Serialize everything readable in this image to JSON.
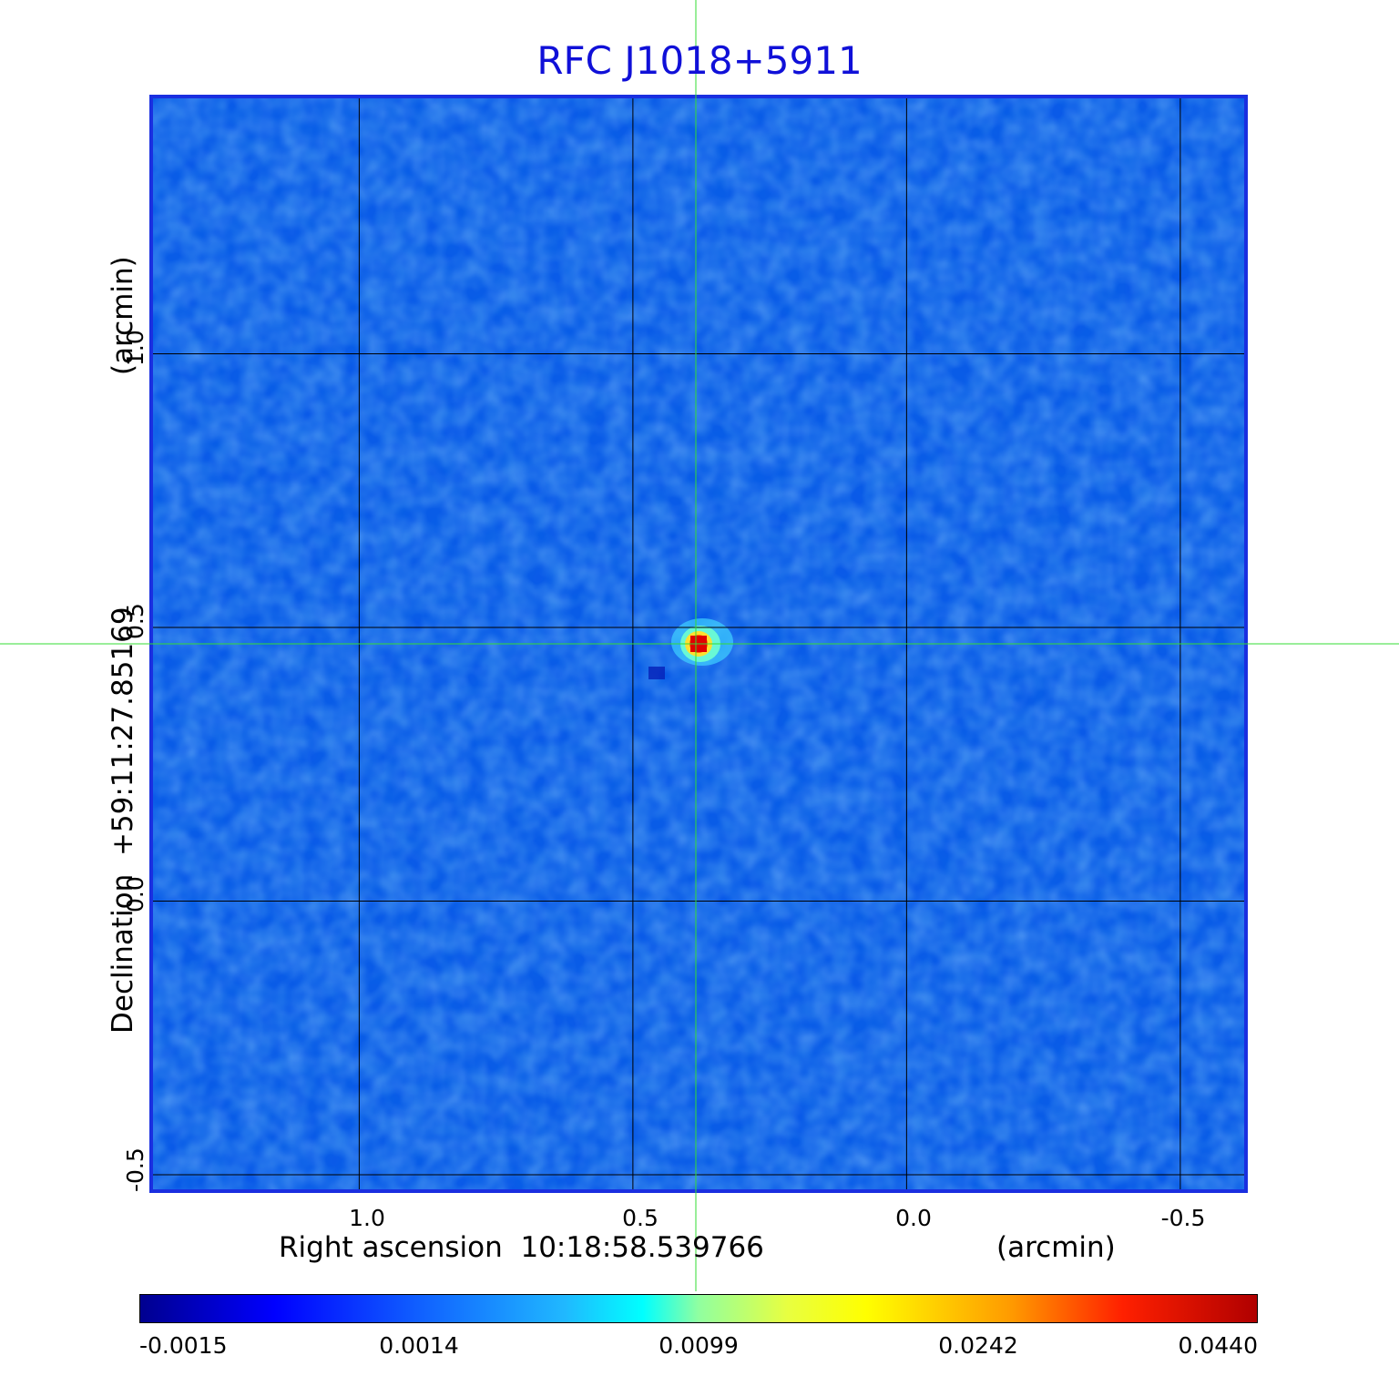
{
  "chart_data": {
    "type": "heatmap",
    "title": "RFC J1018+5911",
    "xlabel": "Right ascension  10:18:58.539766",
    "x_unit": "(arcmin)",
    "ylabel": "Declination  +59:11:27.85169",
    "y_unit": "(arcmin)",
    "x_ticks": [
      "1.0",
      "0.5",
      "0.0",
      "-0.5"
    ],
    "y_ticks": [
      "1.0",
      "0.5",
      "0.0",
      "-0.5"
    ],
    "x_range": [
      1.38,
      -0.62
    ],
    "y_range": [
      -0.53,
      1.47
    ],
    "grid": true,
    "crosshair": {
      "x": 0.385,
      "y": 0.47
    },
    "peak": {
      "x": 0.38,
      "y": 0.47,
      "value": 0.044
    },
    "colorbar": {
      "colormap": "jet",
      "tick_labels": [
        "-0.0015",
        "0.0014",
        "0.0099",
        "0.0242",
        "0.0440"
      ],
      "range": [
        -0.0015,
        0.044
      ]
    },
    "colors": {
      "background_field": "#0a5ae8",
      "grid": "#000000",
      "crosshair": "#33dd33",
      "title": "#1010d8"
    }
  }
}
